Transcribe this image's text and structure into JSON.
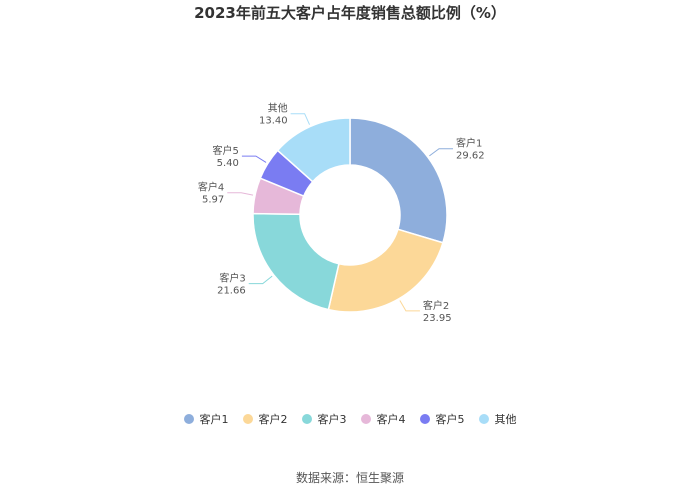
{
  "chart_data": {
    "type": "pie",
    "title": "2023年前五大客户占年度销售总额比例（%）",
    "series": [
      {
        "name": "客户1",
        "value": 29.62,
        "color": "#8eaedc"
      },
      {
        "name": "客户2",
        "value": 23.95,
        "color": "#fcd898"
      },
      {
        "name": "客户3",
        "value": 21.66,
        "color": "#88d8da"
      },
      {
        "name": "客户4",
        "value": 5.97,
        "color": "#e6b8d9"
      },
      {
        "name": "客户5",
        "value": 5.4,
        "color": "#7a7cf2"
      },
      {
        "name": "其他",
        "value": 13.4,
        "color": "#a8ddf8"
      }
    ],
    "legend_position": "bottom"
  },
  "source": "数据来源：恒生聚源"
}
